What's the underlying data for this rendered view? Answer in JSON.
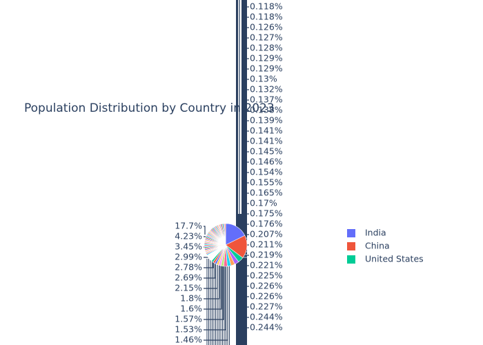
{
  "chart_data": {
    "type": "pie",
    "title": "Population Distribution by Country in 2023",
    "slices": [
      {
        "label": "India",
        "value": 17.7,
        "color": "#636efa"
      },
      {
        "label": "China",
        "value": 17.6,
        "color": "#EF553B"
      },
      {
        "label": "United States",
        "value": 4.23,
        "color": "#00cc96"
      }
    ],
    "outside_labels_left": [
      "17.7%",
      "4.23%",
      "3.45%",
      "2.99%",
      "2.78%",
      "2.69%",
      "2.15%",
      "1.8%",
      "1.6%",
      "1.57%",
      "1.53%",
      "1.46%"
    ],
    "outside_labels_right": [
      "0.118%",
      "0.118%",
      "0.126%",
      "0.127%",
      "0.128%",
      "0.129%",
      "0.129%",
      "0.13%",
      "0.132%",
      "0.137%",
      "0.138%",
      "0.139%",
      "0.141%",
      "0.141%",
      "0.145%",
      "0.146%",
      "0.154%",
      "0.155%",
      "0.165%",
      "0.17%",
      "0.175%",
      "0.176%",
      "0.207%",
      "0.211%",
      "0.219%",
      "0.221%",
      "0.225%",
      "0.226%",
      "0.226%",
      "0.227%",
      "0.244%",
      "0.244%"
    ],
    "legend": {
      "placement": "right",
      "entries": [
        "India",
        "China",
        "United States"
      ]
    }
  }
}
